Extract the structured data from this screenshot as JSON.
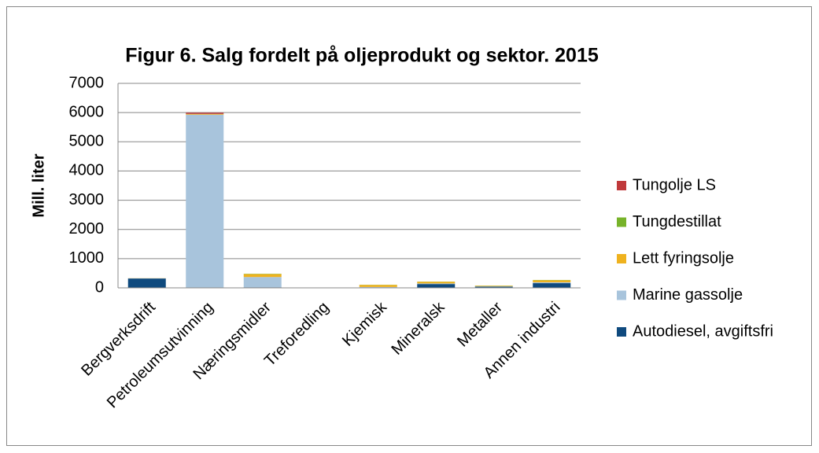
{
  "chart_data": {
    "type": "stacked_bar",
    "title": "Figur 6. Salg fordelt på oljeprodukt og sektor. 2015",
    "y_label": "Mill. liter",
    "categories": [
      "Bergverksdrift",
      "Petroleumsutvinning",
      "Næringsmidler",
      "Treforedling",
      "Kjemisk",
      "Mineralsk",
      "Metaller",
      "Annen industri"
    ],
    "series": [
      {
        "name": "Autodiesel, avgiftsfri",
        "color": "#0f4a7e",
        "values": [
          320,
          10,
          20,
          2,
          10,
          130,
          40,
          160
        ]
      },
      {
        "name": "Marine gassolje",
        "color": "#a8c4dc",
        "values": [
          5,
          5920,
          350,
          2,
          20,
          20,
          10,
          30
        ]
      },
      {
        "name": "Lett fyringsolje",
        "color": "#efb21e",
        "values": [
          5,
          20,
          100,
          3,
          70,
          60,
          20,
          70
        ]
      },
      {
        "name": "Tungdestillat",
        "color": "#77b32a",
        "values": [
          0,
          5,
          10,
          0,
          5,
          5,
          5,
          10
        ]
      },
      {
        "name": "Tungolje LS",
        "color": "#c0393b",
        "values": [
          0,
          40,
          0,
          0,
          0,
          0,
          0,
          0
        ]
      }
    ],
    "ylim": [
      0,
      7000
    ],
    "yticks": [
      0,
      1000,
      2000,
      3000,
      4000,
      5000,
      6000,
      7000
    ],
    "grid": true,
    "legend": "right"
  }
}
